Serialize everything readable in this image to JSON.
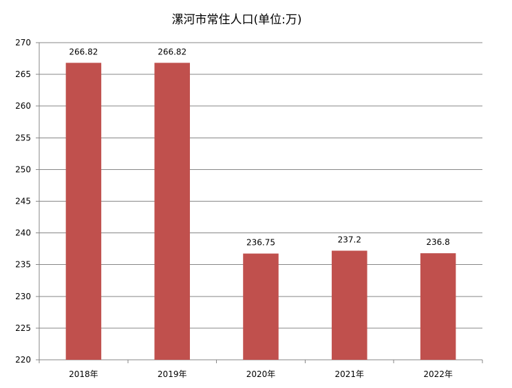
{
  "chart_data": {
    "type": "bar",
    "title": "漯河市常住人口(单位:万)",
    "categories": [
      "2018年",
      "2019年",
      "2020年",
      "2021年",
      "2022年"
    ],
    "values": [
      266.82,
      266.82,
      236.75,
      237.2,
      236.8
    ],
    "data_labels": [
      "266.82",
      "266.82",
      "236.75",
      "237.2",
      "236.8"
    ],
    "ylim": [
      220,
      270
    ],
    "yticks": [
      220,
      225,
      230,
      235,
      240,
      245,
      250,
      255,
      260,
      265,
      270
    ],
    "grid": true,
    "bar_color": "#C0504D"
  }
}
